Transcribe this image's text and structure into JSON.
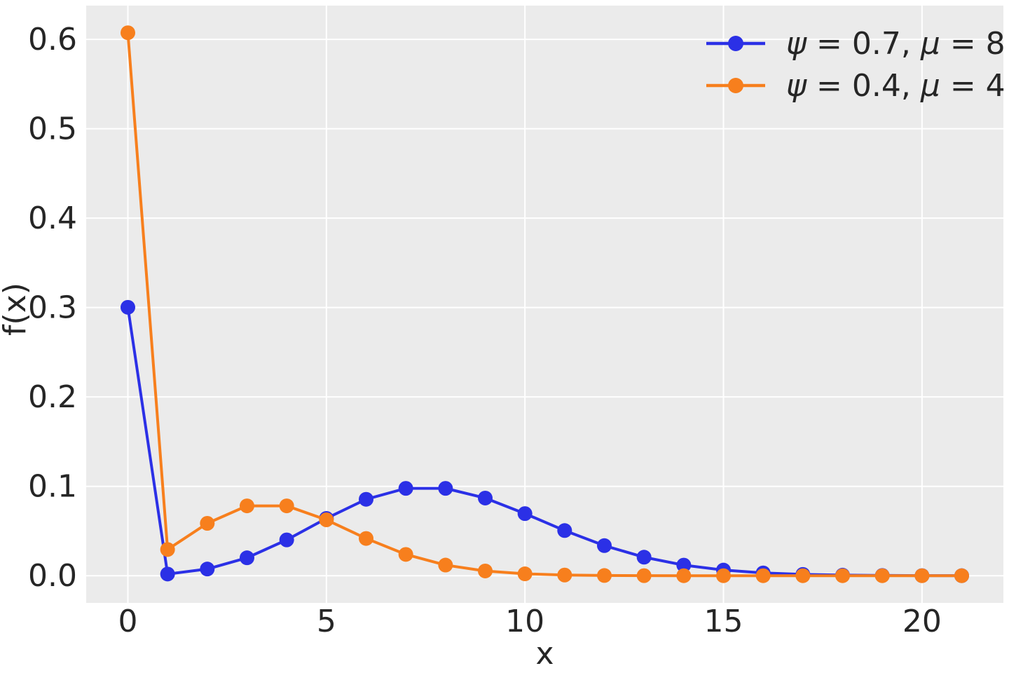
{
  "chart_data": {
    "type": "line",
    "title": "",
    "xlabel": "x",
    "ylabel": "f(x)",
    "x": [
      0,
      1,
      2,
      3,
      4,
      5,
      6,
      7,
      8,
      9,
      10,
      11,
      12,
      13,
      14,
      15,
      16,
      17,
      18,
      19,
      20,
      21
    ],
    "series": [
      {
        "name": "ψ = 0.7, μ = 8",
        "color": "#2b30e6",
        "values": [
          0.30023,
          0.00188,
          0.00751,
          0.02004,
          0.04008,
          0.06412,
          0.0855,
          0.09771,
          0.09771,
          0.08685,
          0.06948,
          0.05053,
          0.03369,
          0.02073,
          0.01185,
          0.00632,
          0.00316,
          0.00149,
          0.00066,
          0.00028,
          0.00011,
          4e-05
        ]
      },
      {
        "name": "ψ = 0.4, μ = 4",
        "color": "#f77f1d",
        "values": [
          0.60733,
          0.02931,
          0.05861,
          0.07815,
          0.07815,
          0.06252,
          0.04168,
          0.02382,
          0.01191,
          0.00529,
          0.00212,
          0.00077,
          0.00026,
          8e-05,
          2e-05,
          1e-05,
          0.0,
          0.0,
          0.0,
          0.0,
          0.0,
          0.0
        ]
      }
    ],
    "xlim": [
      -1.05,
      22.05
    ],
    "ylim": [
      -0.0304,
      0.6377
    ],
    "xticks": [
      0,
      5,
      10,
      15,
      20
    ],
    "ytick_labels": [
      "0.0",
      "0.1",
      "0.2",
      "0.3",
      "0.4",
      "0.5",
      "0.6"
    ],
    "yticks": [
      0.0,
      0.1,
      0.2,
      0.3,
      0.4,
      0.5,
      0.6
    ],
    "grid": true,
    "legend_position": "upper right",
    "plot_bg": "#ebebeb",
    "grid_color": "#ffffff",
    "text_color": "#262626",
    "marker": "circle"
  }
}
